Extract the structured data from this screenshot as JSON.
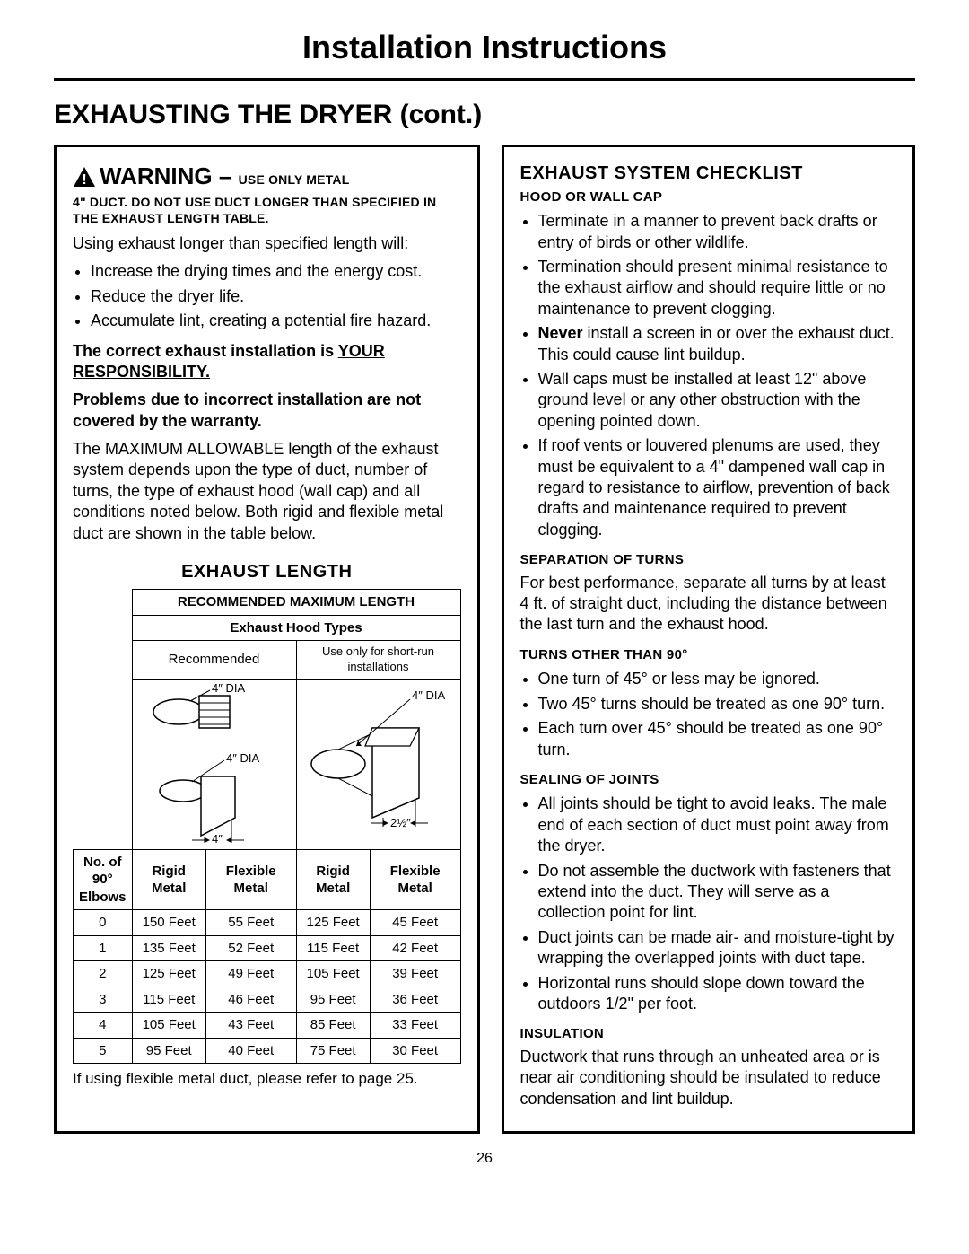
{
  "page_title": "Installation Instructions",
  "section_heading": "EXHAUSTING THE DRYER (cont.)",
  "page_number": "26",
  "colors": {
    "text": "#000000",
    "background": "#ffffff",
    "border": "#000000"
  },
  "left": {
    "warning_word": "WARNING",
    "warning_dash": " – ",
    "warning_upper": "USE ONLY METAL",
    "warning_line2": "4\" DUCT. DO NOT USE DUCT LONGER THAN SPECIFIED IN THE EXHAUST LENGTH TABLE.",
    "intro": "Using exhaust longer than specified length will:",
    "bullets": [
      "Increase the drying times and the energy cost.",
      "Reduce the dryer life.",
      "Accumulate lint, creating a potential fire hazard."
    ],
    "responsibility_pre": "The correct exhaust installation is ",
    "responsibility_underlined": "YOUR RESPONSIBILITY.",
    "warranty": "Problems due to incorrect installation are not covered by the warranty.",
    "max_allowable": "The MAXIMUM ALLOWABLE length of the exhaust system depends upon the type of duct, number of turns, the type of exhaust hood (wall cap) and all conditions noted below. Both rigid and flexible metal duct are shown in the table below.",
    "exhaust_length_heading": "EXHAUST LENGTH",
    "table": {
      "rec_max": "RECOMMENDED MAXIMUM LENGTH",
      "hood_types": "Exhaust Hood Types",
      "col_left_label": "Recommended",
      "col_right_label": "Use only for short-run installations",
      "dia_4": "4\" DIA",
      "dim_4": "4\"",
      "dim_2half": "2½\"",
      "headers": [
        "No. of 90° Elbows",
        "Rigid Metal",
        "Flexible Metal",
        "Rigid Metal",
        "Flexible Metal"
      ],
      "rows": [
        [
          "0",
          "150 Feet",
          "55 Feet",
          "125 Feet",
          "45 Feet"
        ],
        [
          "1",
          "135 Feet",
          "52 Feet",
          "115 Feet",
          "42 Feet"
        ],
        [
          "2",
          "125 Feet",
          "49 Feet",
          "105 Feet",
          "39 Feet"
        ],
        [
          "3",
          "115 Feet",
          "46 Feet",
          "95 Feet",
          "36 Feet"
        ],
        [
          "4",
          "105 Feet",
          "43 Feet",
          "85 Feet",
          "33 Feet"
        ],
        [
          "5",
          "95 Feet",
          "40 Feet",
          "75 Feet",
          "30 Feet"
        ]
      ]
    },
    "footnote": "If using flexible metal duct, please refer to page 25."
  },
  "right": {
    "title": "EXHAUST SYSTEM CHECKLIST",
    "hood_sub": "HOOD OR WALL CAP",
    "hood_bullets": [
      "Terminate in a manner to prevent back drafts or entry of birds or other wildlife.",
      "Termination should present minimal resistance to the exhaust airflow and should require little or no maintenance to prevent clogging.",
      "",
      "Wall caps must be installed at least 12\" above ground level or any other obstruction with the opening pointed down.",
      "If roof vents or louvered plenums are used, they must be equivalent to a 4\" dampened wall cap in regard to resistance to airflow, prevention of back drafts and maintenance required to prevent clogging."
    ],
    "never_bold": "Never",
    "never_rest": " install a screen in or over the exhaust duct. This could cause lint buildup.",
    "sep_sub": "SEPARATION OF TURNS",
    "sep_body": "For best performance, separate all turns by at least 4 ft. of straight duct, including the distance between the last turn and the exhaust hood.",
    "turns_sub": "TURNS OTHER THAN 90°",
    "turns_bullets": [
      "One turn of 45° or less may be ignored.",
      "Two 45° turns should be treated as one 90° turn.",
      "Each turn over 45° should be treated as one 90° turn."
    ],
    "seal_sub": "SEALING OF JOINTS",
    "seal_bullets": [
      "All joints should be tight to avoid leaks. The male end of each section of duct must point away from the dryer.",
      "Do not assemble the ductwork with fasteners that extend into the duct. They will serve as a collection point for lint.",
      "Duct joints can be made air- and moisture-tight by wrapping the overlapped joints with duct tape.",
      "Horizontal runs should slope down toward the outdoors 1/2\" per foot."
    ],
    "insul_sub": "INSULATION",
    "insul_body": "Ductwork that runs through an unheated area or is near air conditioning should be insulated to reduce condensation and lint buildup."
  }
}
